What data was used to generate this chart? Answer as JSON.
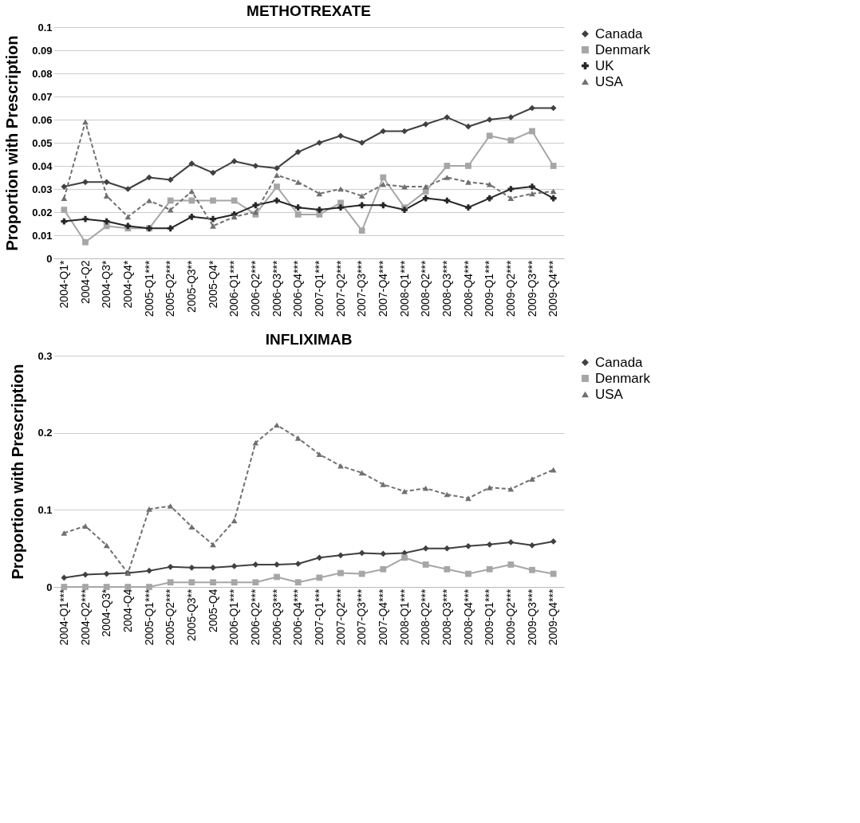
{
  "chart_data": [
    {
      "type": "line",
      "title": "METHOTREXATE",
      "ylabel": "Proportion with Prescription",
      "categories": [
        "2004-Q1*",
        "2004-Q2",
        "2004-Q3*",
        "2004-Q4*",
        "2005-Q1***",
        "2005-Q2***",
        "2005-Q3**",
        "2005-Q4*",
        "2006-Q1***",
        "2006-Q2***",
        "2006-Q3***",
        "2006-Q4***",
        "2007-Q1***",
        "2007-Q2***",
        "2007-Q3***",
        "2007-Q4***",
        "2008-Q1***",
        "2008-Q2***",
        "2008-Q3***",
        "2008-Q4***",
        "2009-Q1***",
        "2009-Q2***",
        "2009-Q3***",
        "2009-Q4***"
      ],
      "series": [
        {
          "name": "Canada",
          "color": "#404040",
          "marker": "diamond",
          "line_style": "solid",
          "values": [
            0.031,
            0.033,
            0.033,
            0.03,
            0.035,
            0.034,
            0.041,
            0.037,
            0.042,
            0.04,
            0.039,
            0.046,
            0.05,
            0.053,
            0.05,
            0.055,
            0.055,
            0.058,
            0.061,
            0.057,
            0.06,
            0.061,
            0.065,
            0.065
          ]
        },
        {
          "name": "Denmark",
          "color": "#a6a6a6",
          "marker": "square",
          "line_style": "solid",
          "values": [
            0.021,
            0.007,
            0.014,
            0.013,
            0.013,
            0.025,
            0.025,
            0.025,
            0.025,
            0.019,
            0.031,
            0.019,
            0.019,
            0.024,
            0.012,
            0.035,
            0.022,
            0.029,
            0.04,
            0.04,
            0.053,
            0.051,
            0.055,
            0.04
          ]
        },
        {
          "name": "UK",
          "color": "#262626",
          "marker": "cross",
          "line_style": "solid",
          "values": [
            0.016,
            0.017,
            0.016,
            0.014,
            0.013,
            0.013,
            0.018,
            0.017,
            0.019,
            0.023,
            0.025,
            0.022,
            0.021,
            0.022,
            0.023,
            0.023,
            0.021,
            0.026,
            0.025,
            0.022,
            0.026,
            0.03,
            0.031,
            0.026
          ]
        },
        {
          "name": "USA",
          "color": "#707070",
          "marker": "triangle",
          "line_style": "dashed",
          "values": [
            0.026,
            0.059,
            0.027,
            0.018,
            0.025,
            0.021,
            0.029,
            0.014,
            0.018,
            0.02,
            0.036,
            0.033,
            0.028,
            0.03,
            0.027,
            0.032,
            0.031,
            0.031,
            0.035,
            0.033,
            0.032,
            0.026,
            0.028,
            0.029
          ]
        }
      ],
      "ylim": [
        0,
        0.1
      ],
      "yticks": [
        0,
        0.01,
        0.02,
        0.03,
        0.04,
        0.05,
        0.06,
        0.07,
        0.08,
        0.09,
        0.1
      ],
      "grid": "y",
      "legend": "right"
    },
    {
      "type": "line",
      "title": "INFLIXIMAB",
      "ylabel": "Proportion with Prescription",
      "categories": [
        "2004-Q1***",
        "2004-Q2***",
        "2004-Q3*",
        "2004-Q4",
        "2005-Q1***",
        "2005-Q2***",
        "2005-Q3**",
        "2005-Q4",
        "2006-Q1***",
        "2006-Q2***",
        "2006-Q3***",
        "2006-Q4***",
        "2007-Q1***",
        "2007-Q2***",
        "2007-Q3***",
        "2007-Q4***",
        "2008-Q1***",
        "2008-Q2***",
        "2008-Q3***",
        "2008-Q4***",
        "2009-Q1***",
        "2009-Q2***",
        "2009-Q3***",
        "2009-Q4***"
      ],
      "series": [
        {
          "name": "Canada",
          "color": "#404040",
          "marker": "diamond",
          "line_style": "solid",
          "values": [
            0.012,
            0.016,
            0.017,
            0.018,
            0.021,
            0.026,
            0.025,
            0.025,
            0.027,
            0.029,
            0.029,
            0.03,
            0.038,
            0.041,
            0.044,
            0.043,
            0.044,
            0.05,
            0.05,
            0.053,
            0.055,
            0.058,
            0.054,
            0.059
          ]
        },
        {
          "name": "Denmark",
          "color": "#a6a6a6",
          "marker": "square",
          "line_style": "solid",
          "values": [
            0,
            0,
            0,
            0,
            0,
            0.006,
            0.006,
            0.006,
            0.006,
            0.006,
            0.013,
            0.006,
            0.012,
            0.018,
            0.017,
            0.023,
            0.038,
            0.029,
            0.023,
            0.017,
            0.023,
            0.029,
            0.022,
            0.017
          ]
        },
        {
          "name": "USA",
          "color": "#707070",
          "marker": "triangle",
          "line_style": "dashed",
          "values": [
            0.07,
            0.079,
            0.054,
            0.018,
            0.101,
            0.105,
            0.078,
            0.055,
            0.086,
            0.187,
            0.21,
            0.193,
            0.172,
            0.157,
            0.148,
            0.133,
            0.124,
            0.128,
            0.12,
            0.115,
            0.129,
            0.127,
            0.14,
            0.152
          ]
        }
      ],
      "ylim": [
        0,
        0.3
      ],
      "yticks": [
        0,
        0.1,
        0.2,
        0.3
      ],
      "grid": "y",
      "legend": "right"
    }
  ]
}
